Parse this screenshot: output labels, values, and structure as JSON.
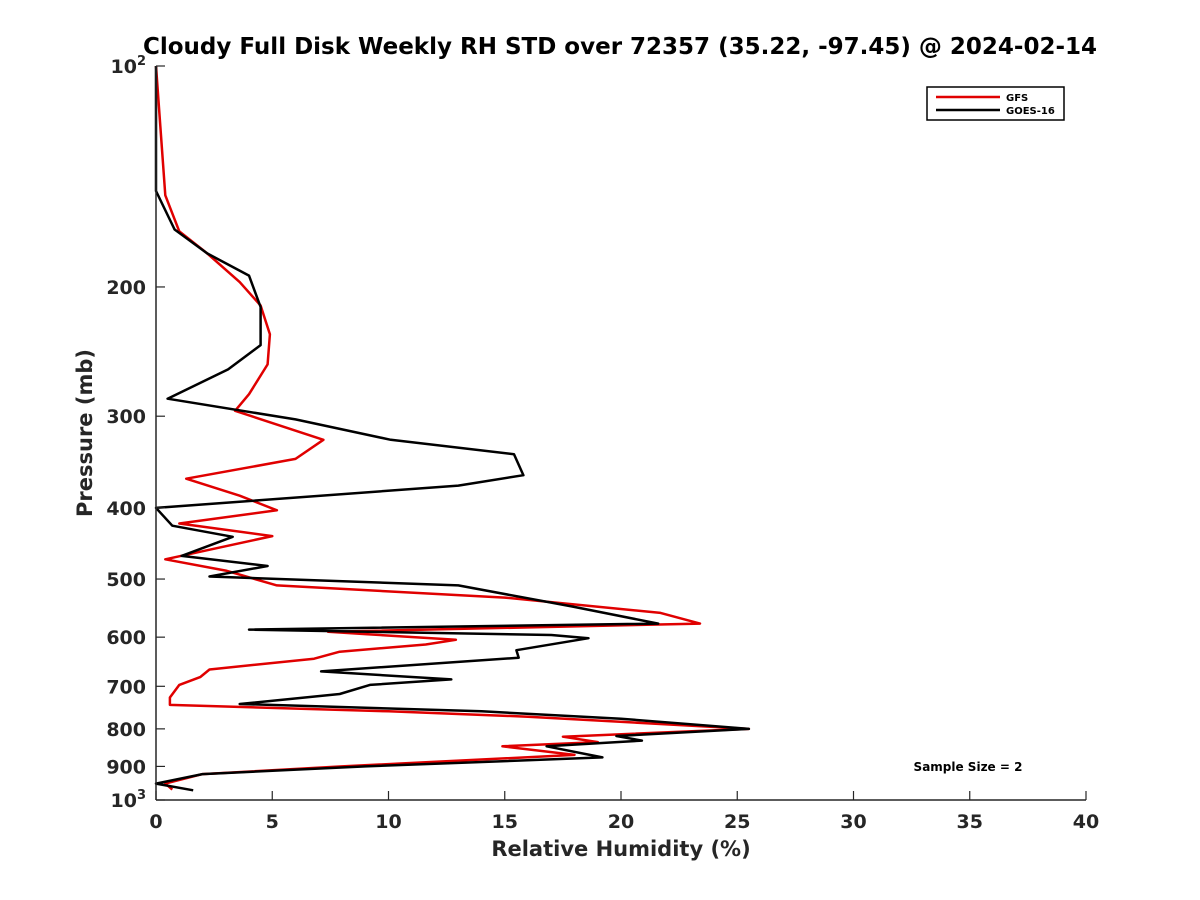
{
  "chart_data": {
    "type": "line",
    "title": "Cloudy Full Disk Weekly RH STD over 72357 (35.22, -97.45) @ 2024-02-14",
    "xlabel": "Relative Humidity (%)",
    "ylabel": "Pressure (mb)",
    "xlim": [
      0,
      40
    ],
    "ylim": [
      100,
      1000
    ],
    "y_scale": "log",
    "y_reversed": true,
    "grid": false,
    "legend_position": "top-right",
    "x_ticks": [
      {
        "value": 0,
        "label": "0"
      },
      {
        "value": 5,
        "label": "5"
      },
      {
        "value": 10,
        "label": "10"
      },
      {
        "value": 15,
        "label": "15"
      },
      {
        "value": 20,
        "label": "20"
      },
      {
        "value": 25,
        "label": "25"
      },
      {
        "value": 30,
        "label": "30"
      },
      {
        "value": 35,
        "label": "35"
      },
      {
        "value": 40,
        "label": "40"
      }
    ],
    "y_ticks": [
      {
        "value": 100,
        "base": "10",
        "exp": "2"
      },
      {
        "value": 200,
        "label": "200"
      },
      {
        "value": 300,
        "label": "300"
      },
      {
        "value": 400,
        "label": "400"
      },
      {
        "value": 500,
        "label": "500"
      },
      {
        "value": 600,
        "label": "600"
      },
      {
        "value": 700,
        "label": "700"
      },
      {
        "value": 800,
        "label": "800"
      },
      {
        "value": 900,
        "label": "900"
      },
      {
        "value": 1000,
        "base": "10",
        "exp": "3"
      }
    ],
    "series": [
      {
        "name": "GFS",
        "color": "#e00000",
        "points": [
          [
            0.0,
            100
          ],
          [
            0.4,
            150
          ],
          [
            1.0,
            168
          ],
          [
            2.2,
            180
          ],
          [
            3.6,
            197
          ],
          [
            4.5,
            212
          ],
          [
            4.9,
            232
          ],
          [
            4.8,
            255
          ],
          [
            4.0,
            280
          ],
          [
            3.4,
            295
          ],
          [
            7.2,
            323
          ],
          [
            6.0,
            343
          ],
          [
            1.3,
            365
          ],
          [
            3.6,
            385
          ],
          [
            5.2,
            403
          ],
          [
            1.0,
            420
          ],
          [
            5.0,
            437
          ],
          [
            0.4,
            470
          ],
          [
            3.0,
            487
          ],
          [
            5.2,
            510
          ],
          [
            15.0,
            530
          ],
          [
            21.7,
            556
          ],
          [
            23.4,
            575
          ],
          [
            7.4,
            590
          ],
          [
            12.9,
            605
          ],
          [
            11.6,
            614
          ],
          [
            7.9,
            628
          ],
          [
            6.8,
            642
          ],
          [
            2.3,
            664
          ],
          [
            1.9,
            680
          ],
          [
            1.0,
            697
          ],
          [
            0.6,
            725
          ],
          [
            0.6,
            742
          ],
          [
            10.0,
            757
          ],
          [
            16.0,
            770
          ],
          [
            25.5,
            800
          ],
          [
            17.5,
            820
          ],
          [
            19.0,
            834
          ],
          [
            14.9,
            845
          ],
          [
            18.0,
            868
          ],
          [
            8.0,
            900
          ],
          [
            2.0,
            922
          ],
          [
            0.4,
            950
          ],
          [
            0.7,
            968
          ]
        ]
      },
      {
        "name": "GOES-16",
        "color": "#000000",
        "points": [
          [
            0.0,
            100
          ],
          [
            0.0,
            148
          ],
          [
            0.8,
            167
          ],
          [
            2.2,
            180
          ],
          [
            4.0,
            193
          ],
          [
            4.5,
            213
          ],
          [
            4.5,
            240
          ],
          [
            3.1,
            259
          ],
          [
            0.5,
            284
          ],
          [
            6.0,
            303
          ],
          [
            10.1,
            323
          ],
          [
            15.4,
            338
          ],
          [
            15.8,
            361
          ],
          [
            13.0,
            373
          ],
          [
            0.0,
            400
          ],
          [
            0.7,
            423
          ],
          [
            3.3,
            438
          ],
          [
            1.1,
            465
          ],
          [
            4.8,
            480
          ],
          [
            2.3,
            496
          ],
          [
            13.0,
            510
          ],
          [
            17.9,
            545
          ],
          [
            21.6,
            575
          ],
          [
            4.0,
            586
          ],
          [
            17.0,
            596
          ],
          [
            18.6,
            602
          ],
          [
            15.5,
            625
          ],
          [
            15.6,
            640
          ],
          [
            7.1,
            668
          ],
          [
            12.7,
            685
          ],
          [
            9.2,
            697
          ],
          [
            7.9,
            717
          ],
          [
            3.6,
            740
          ],
          [
            14.0,
            757
          ],
          [
            20.0,
            775
          ],
          [
            25.5,
            800
          ],
          [
            19.8,
            818
          ],
          [
            20.9,
            830
          ],
          [
            16.8,
            845
          ],
          [
            19.2,
            875
          ],
          [
            9.0,
            900
          ],
          [
            2.0,
            922
          ],
          [
            0.0,
            950
          ],
          [
            1.6,
            970
          ]
        ]
      }
    ],
    "annotation": "Sample Size = 2"
  }
}
